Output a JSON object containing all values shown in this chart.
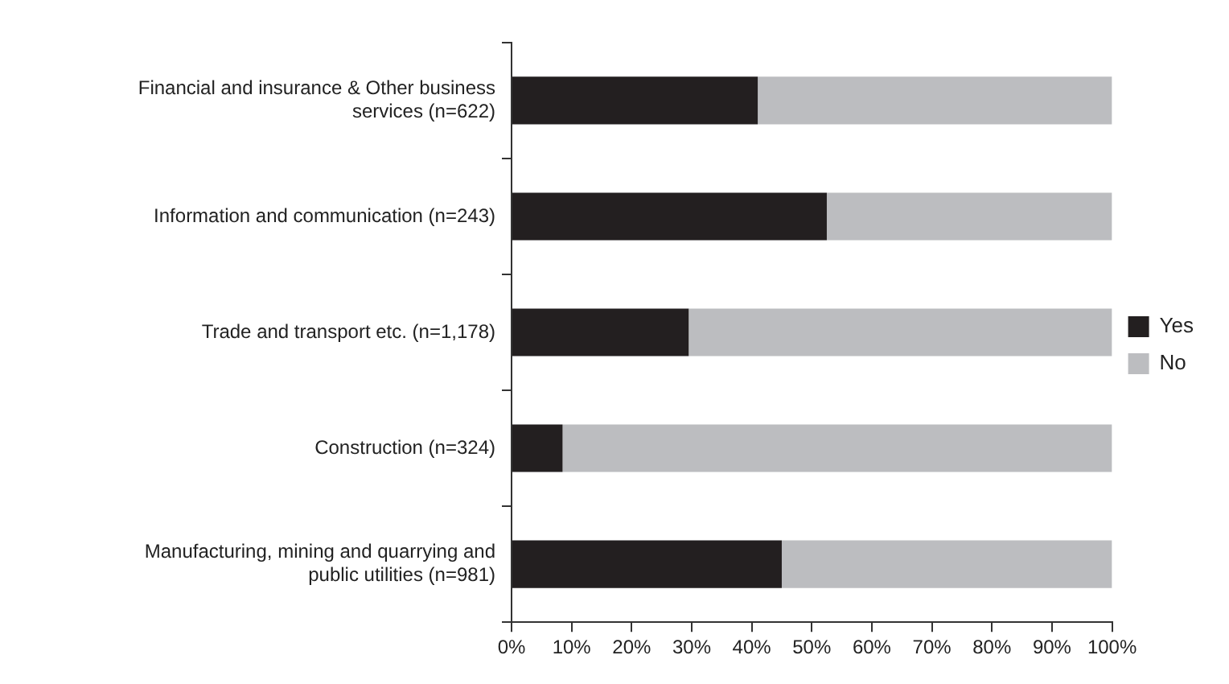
{
  "chart_data": {
    "type": "bar",
    "orientation": "horizontal",
    "stacked": true,
    "categories": [
      "Financial and insurance & Other business services (n=622)",
      "Information and communication (n=243)",
      "Trade and transport etc. (n=1,178)",
      "Construction (n=324)",
      "Manufacturing, mining and quarrying and public utilities (n=981)"
    ],
    "series": [
      {
        "name": "Yes",
        "color": "#231f20",
        "values": [
          41,
          52.5,
          29.5,
          8.5,
          45
        ]
      },
      {
        "name": "No",
        "color": "#bcbdc0",
        "values": [
          59,
          47.5,
          70.5,
          91.5,
          55
        ]
      }
    ],
    "xlim": [
      0,
      100
    ],
    "xticks": [
      {
        "value": 0,
        "label": "0%"
      },
      {
        "value": 10,
        "label": "10%"
      },
      {
        "value": 20,
        "label": "20%"
      },
      {
        "value": 30,
        "label": "30%"
      },
      {
        "value": 40,
        "label": "40%"
      },
      {
        "value": 50,
        "label": "50%"
      },
      {
        "value": 60,
        "label": "60%"
      },
      {
        "value": 70,
        "label": "70%"
      },
      {
        "value": 80,
        "label": "80%"
      },
      {
        "value": 90,
        "label": "90%"
      },
      {
        "value": 100,
        "label": "100%"
      }
    ],
    "grid": false,
    "legend": "right"
  }
}
